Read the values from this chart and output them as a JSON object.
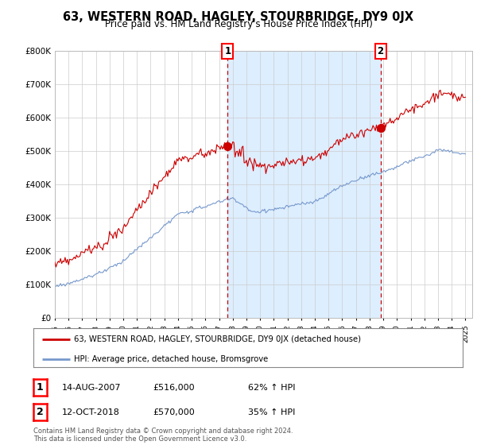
{
  "title": "63, WESTERN ROAD, HAGLEY, STOURBRIDGE, DY9 0JX",
  "subtitle": "Price paid vs. HM Land Registry's House Price Index (HPI)",
  "ylim": [
    0,
    800000
  ],
  "legend_line1": "63, WESTERN ROAD, HAGLEY, STOURBRIDGE, DY9 0JX (detached house)",
  "legend_line2": "HPI: Average price, detached house, Bromsgrove",
  "sale1_date": "14-AUG-2007",
  "sale1_price": "£516,000",
  "sale1_hpi": "62% ↑ HPI",
  "sale1_x": 2007.625,
  "sale1_y": 516000,
  "sale2_date": "12-OCT-2018",
  "sale2_price": "£570,000",
  "sale2_hpi": "35% ↑ HPI",
  "sale2_x": 2018.792,
  "sale2_y": 570000,
  "footer": "Contains HM Land Registry data © Crown copyright and database right 2024.\nThis data is licensed under the Open Government Licence v3.0.",
  "red_color": "#cc0000",
  "blue_color": "#7799cc",
  "fill_color": "#ddeeff",
  "background_color": "#ffffff",
  "grid_color": "#cccccc",
  "xlim_start": 1995.0,
  "xlim_end": 2025.5
}
